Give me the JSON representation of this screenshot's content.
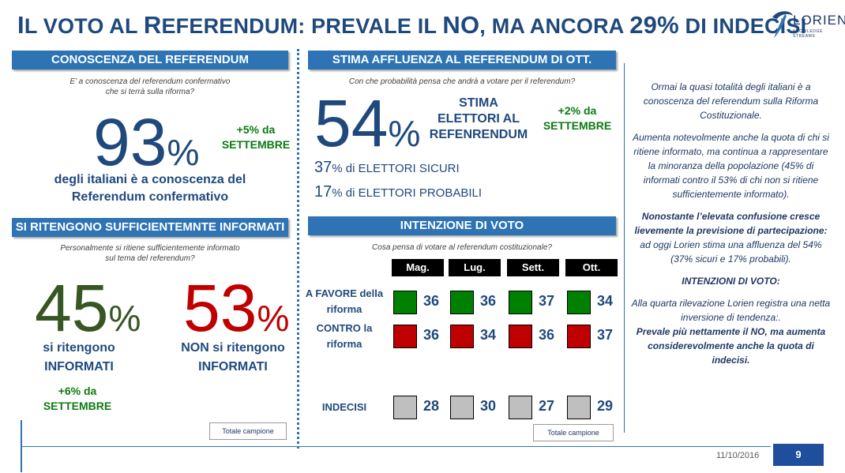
{
  "header": {
    "title": "Il voto al Referendum: prevale il NO, ma ancora 29% di indecisi",
    "title_parts": [
      "I",
      "L VOTO AL ",
      "R",
      "EFERENDUM",
      ": PREVALE IL ",
      "NO",
      ", MA ANCORA ",
      "29%",
      " DI INDECISI"
    ]
  },
  "logo": {
    "text": "LORIEN",
    "tagline": "KNOWLEDGE STREAMS",
    "color": "#1f3864"
  },
  "conoscenza": {
    "band": "CONOSCENZA DEL REFERENDUM",
    "question_1": "E’ a conoscenza del referendum confermativo",
    "question_2": "che si terrà sulla riforma?",
    "number": "93",
    "pct": "%",
    "delta_1": "+5% da",
    "delta_2": "SETTEMBRE",
    "caption_1": "degli italiani è a conoscenza del",
    "caption_2": "Referendum confermativo"
  },
  "informati": {
    "band": "SI RITENGONO SUFFICIENTEMNTE INFORMATI",
    "question_1": "Personalmente si ritiene sufficientemente informato",
    "question_2": "sul tema del referendum?",
    "yes_number": "45",
    "no_number": "53",
    "pct": "%",
    "yes_caption_1": "si ritengono",
    "yes_caption_2": "INFORMATI",
    "no_caption_1": "NON si ritengono",
    "no_caption_2": "INFORMATI",
    "delta_1": "+6% da",
    "delta_2": "SETTEMBRE",
    "yes_color": "#375623",
    "no_color": "#c00000",
    "sample": "Totale campione"
  },
  "affluenza": {
    "band": "STIMA AFFLUENZA AL REFERENDUM DI OTT.",
    "question": "Con che probabilità pensa che andrà a votare per il referendum?",
    "number": "54",
    "pct": "%",
    "label_1": "STIMA",
    "label_2": "ELETTORI AL",
    "label_3": "REFENRENDUM",
    "delta_1": "+2% da",
    "delta_2": "SETTEMBRE",
    "sicuri_num": "37",
    "sicuri_text": "% di ELETTORI SICURI",
    "probabili_num": "17",
    "probabili_text": "% di ELETTORI PROBABILI"
  },
  "intenzione": {
    "band": "INTENZIONE DI VOTO",
    "question": "Cosa pensa di votare al referendum costituzionale?",
    "sample": "Totale campione"
  },
  "chart_data": {
    "type": "table",
    "title": "INTENZIONE DI VOTO",
    "categories": [
      "Mag.",
      "Lug.",
      "Sett.",
      "Ott."
    ],
    "series": [
      {
        "name": "A FAVORE della riforma",
        "label_lines": [
          "A FAVORE della",
          "riforma"
        ],
        "values": [
          36,
          36,
          37,
          34
        ],
        "color": "#008000"
      },
      {
        "name": "CONTRO la riforma",
        "label_lines": [
          "CONTRO la",
          "riforma"
        ],
        "values": [
          36,
          34,
          36,
          37
        ],
        "color": "#c00000"
      },
      {
        "name": "INDECISI",
        "label_lines": [
          "INDECISI"
        ],
        "values": [
          28,
          30,
          27,
          29
        ],
        "color": "#bfbfbf"
      }
    ]
  },
  "sidebar": {
    "p1": "Ormai la quasi totalità degli italiani è a conoscenza del referendum sulla Riforma Costituzionale.",
    "p2": "Aumenta notevolmente anche la quota di chi si ritiene informato, ma continua a rappresentare la minoranza della popolazione (45% di informati contro il 53% di chi non si ritiene sufficientemente informato).",
    "p3_bold": "Nonostante l’elevata confusione cresce lievemente la previsione di partecipazione:",
    "p3_rest": " ad oggi Lorien stima una affluenza del 54% (37% sicuri e 17% probabili).",
    "p4": "INTENZIONI DI VOTO:",
    "p5": "Alla quarta rilevazione Lorien registra una netta inversione di tendenza:.",
    "p6": "Prevale più nettamente il NO, ma aumenta considerevolmente anche la quota di indecisi."
  },
  "footer": {
    "date": "11/10/2016",
    "page": "9",
    "accent": "#1f4e9c"
  }
}
